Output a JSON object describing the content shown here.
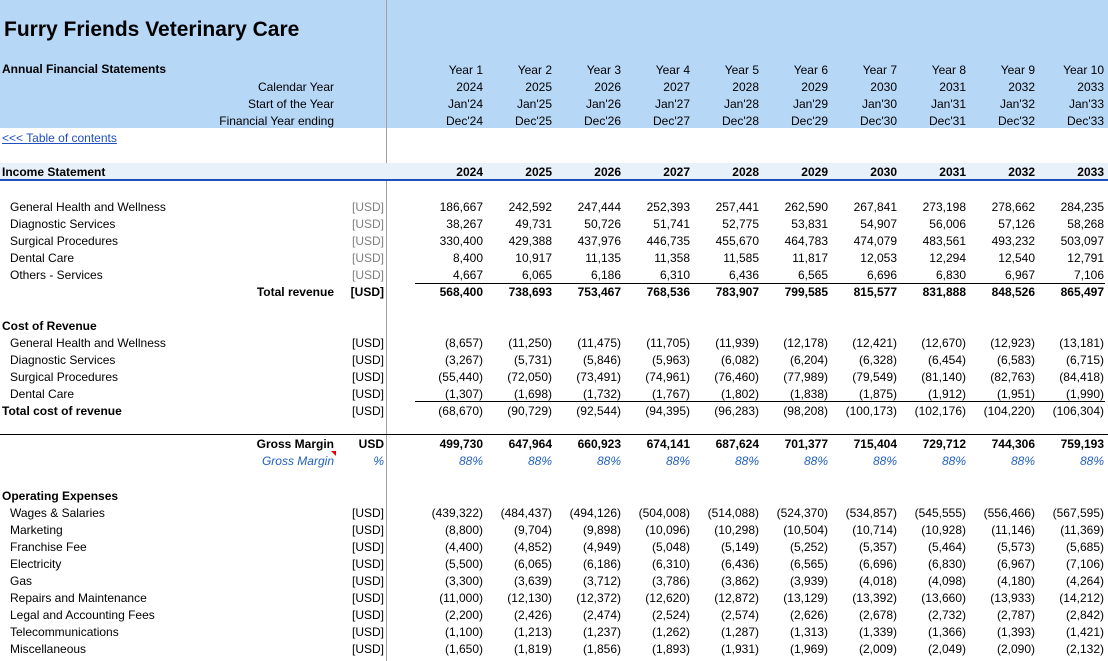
{
  "company": "Furry Friends Veterinary Care",
  "subtitle": "Annual Financial Statements",
  "header_labels": {
    "calendar_year": "Calendar Year",
    "start": "Start of the Year",
    "end": "Financial Year ending"
  },
  "years": [
    "Year 1",
    "Year 2",
    "Year 3",
    "Year 4",
    "Year 5",
    "Year 6",
    "Year 7",
    "Year 8",
    "Year 9",
    "Year 10"
  ],
  "calendar_years": [
    "2024",
    "2025",
    "2026",
    "2027",
    "2028",
    "2029",
    "2030",
    "2031",
    "2032",
    "2033"
  ],
  "starts": [
    "Jan'24",
    "Jan'25",
    "Jan'26",
    "Jan'27",
    "Jan'28",
    "Jan'29",
    "Jan'30",
    "Jan'31",
    "Jan'32",
    "Jan'33"
  ],
  "ends": [
    "Dec'24",
    "Dec'25",
    "Dec'26",
    "Dec'27",
    "Dec'28",
    "Dec'29",
    "Dec'30",
    "Dec'31",
    "Dec'32",
    "Dec'33"
  ],
  "toc_link": "<<< Table of contents",
  "income": {
    "title": "Income Statement",
    "years": [
      "2024",
      "2025",
      "2026",
      "2027",
      "2028",
      "2029",
      "2030",
      "2031",
      "2032",
      "2033"
    ],
    "revenue": [
      {
        "label": "General Health and Wellness",
        "unit": "[USD]",
        "values": [
          "186,667",
          "242,592",
          "247,444",
          "252,393",
          "257,441",
          "262,590",
          "267,841",
          "273,198",
          "278,662",
          "284,235"
        ]
      },
      {
        "label": "Diagnostic Services",
        "unit": "[USD]",
        "values": [
          "38,267",
          "49,731",
          "50,726",
          "51,741",
          "52,775",
          "53,831",
          "54,907",
          "56,006",
          "57,126",
          "58,268"
        ]
      },
      {
        "label": "Surgical Procedures",
        "unit": "[USD]",
        "values": [
          "330,400",
          "429,388",
          "437,976",
          "446,735",
          "455,670",
          "464,783",
          "474,079",
          "483,561",
          "493,232",
          "503,097"
        ]
      },
      {
        "label": "Dental Care",
        "unit": "[USD]",
        "values": [
          "8,400",
          "10,917",
          "11,135",
          "11,358",
          "11,585",
          "11,817",
          "12,053",
          "12,294",
          "12,540",
          "12,791"
        ]
      },
      {
        "label": "Others - Services",
        "unit": "[USD]",
        "values": [
          "4,667",
          "6,065",
          "6,186",
          "6,310",
          "6,436",
          "6,565",
          "6,696",
          "6,830",
          "6,967",
          "7,106"
        ]
      }
    ],
    "total_revenue": {
      "label": "Total revenue",
      "unit": "[USD]",
      "values": [
        "568,400",
        "738,693",
        "753,467",
        "768,536",
        "783,907",
        "799,585",
        "815,577",
        "831,888",
        "848,526",
        "865,497"
      ]
    },
    "cost_title": "Cost of Revenue",
    "cost": [
      {
        "label": "General Health and Wellness",
        "unit": "[USD]",
        "values": [
          "(8,657)",
          "(11,250)",
          "(11,475)",
          "(11,705)",
          "(11,939)",
          "(12,178)",
          "(12,421)",
          "(12,670)",
          "(12,923)",
          "(13,181)"
        ]
      },
      {
        "label": "Diagnostic Services",
        "unit": "[USD]",
        "values": [
          "(3,267)",
          "(5,731)",
          "(5,846)",
          "(5,963)",
          "(6,082)",
          "(6,204)",
          "(6,328)",
          "(6,454)",
          "(6,583)",
          "(6,715)"
        ]
      },
      {
        "label": "Surgical Procedures",
        "unit": "[USD]",
        "values": [
          "(55,440)",
          "(72,050)",
          "(73,491)",
          "(74,961)",
          "(76,460)",
          "(77,989)",
          "(79,549)",
          "(81,140)",
          "(82,763)",
          "(84,418)"
        ]
      },
      {
        "label": "Dental Care",
        "unit": "[USD]",
        "values": [
          "(1,307)",
          "(1,698)",
          "(1,732)",
          "(1,767)",
          "(1,802)",
          "(1,838)",
          "(1,875)",
          "(1,912)",
          "(1,951)",
          "(1,990)"
        ]
      }
    ],
    "total_cost": {
      "label": "Total cost of revenue",
      "unit": "[USD]",
      "values": [
        "(68,670)",
        "(90,729)",
        "(92,544)",
        "(94,395)",
        "(96,283)",
        "(98,208)",
        "(100,173)",
        "(102,176)",
        "(104,220)",
        "(106,304)"
      ]
    },
    "gross_margin": {
      "label": "Gross Margin",
      "unit": "USD",
      "values": [
        "499,730",
        "647,964",
        "660,923",
        "674,141",
        "687,624",
        "701,377",
        "715,404",
        "729,712",
        "744,306",
        "759,193"
      ]
    },
    "gross_margin_pct": {
      "label": "Gross Margin",
      "unit": "%",
      "values": [
        "88%",
        "88%",
        "88%",
        "88%",
        "88%",
        "88%",
        "88%",
        "88%",
        "88%",
        "88%"
      ]
    },
    "opex_title": "Operating Expenses",
    "opex": [
      {
        "label": "Wages & Salaries",
        "unit": "[USD]",
        "values": [
          "(439,322)",
          "(484,437)",
          "(494,126)",
          "(504,008)",
          "(514,088)",
          "(524,370)",
          "(534,857)",
          "(545,555)",
          "(556,466)",
          "(567,595)"
        ]
      },
      {
        "label": "Marketing",
        "unit": "[USD]",
        "values": [
          "(8,800)",
          "(9,704)",
          "(9,898)",
          "(10,096)",
          "(10,298)",
          "(10,504)",
          "(10,714)",
          "(10,928)",
          "(11,146)",
          "(11,369)"
        ]
      },
      {
        "label": "Franchise Fee",
        "unit": "[USD]",
        "values": [
          "(4,400)",
          "(4,852)",
          "(4,949)",
          "(5,048)",
          "(5,149)",
          "(5,252)",
          "(5,357)",
          "(5,464)",
          "(5,573)",
          "(5,685)"
        ]
      },
      {
        "label": "Electricity",
        "unit": "[USD]",
        "values": [
          "(5,500)",
          "(6,065)",
          "(6,186)",
          "(6,310)",
          "(6,436)",
          "(6,565)",
          "(6,696)",
          "(6,830)",
          "(6,967)",
          "(7,106)"
        ]
      },
      {
        "label": "Gas",
        "unit": "[USD]",
        "values": [
          "(3,300)",
          "(3,639)",
          "(3,712)",
          "(3,786)",
          "(3,862)",
          "(3,939)",
          "(4,018)",
          "(4,098)",
          "(4,180)",
          "(4,264)"
        ]
      },
      {
        "label": "Repairs and Maintenance",
        "unit": "[USD]",
        "values": [
          "(11,000)",
          "(12,130)",
          "(12,372)",
          "(12,620)",
          "(12,872)",
          "(13,129)",
          "(13,392)",
          "(13,660)",
          "(13,933)",
          "(14,212)"
        ]
      },
      {
        "label": "Legal and Accounting Fees",
        "unit": "[USD]",
        "values": [
          "(2,200)",
          "(2,426)",
          "(2,474)",
          "(2,524)",
          "(2,574)",
          "(2,626)",
          "(2,678)",
          "(2,732)",
          "(2,787)",
          "(2,842)"
        ]
      },
      {
        "label": "Telecommunications",
        "unit": "[USD]",
        "values": [
          "(1,100)",
          "(1,213)",
          "(1,237)",
          "(1,262)",
          "(1,287)",
          "(1,313)",
          "(1,339)",
          "(1,366)",
          "(1,393)",
          "(1,421)"
        ]
      },
      {
        "label": "Miscellaneous",
        "unit": "[USD]",
        "values": [
          "(1,650)",
          "(1,819)",
          "(1,856)",
          "(1,893)",
          "(1,931)",
          "(1,969)",
          "(2,009)",
          "(2,049)",
          "(2,090)",
          "(2,132)"
        ]
      }
    ]
  }
}
